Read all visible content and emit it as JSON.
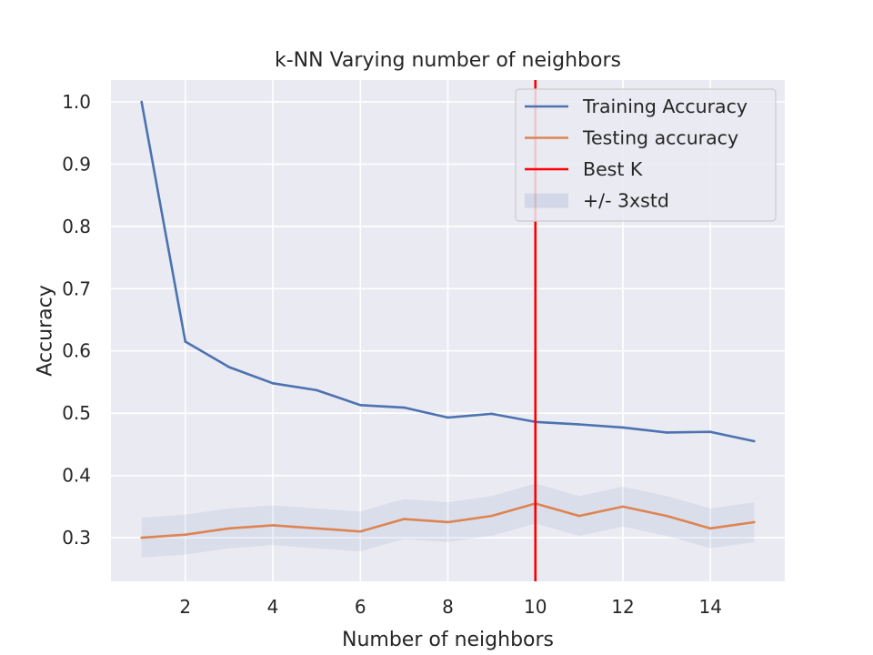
{
  "chart_data": {
    "type": "line",
    "title": "k-NN Varying number of neighbors",
    "xlabel": "Number of neighbors",
    "ylabel": "Accuracy",
    "xlim": [
      0.3,
      15.7
    ],
    "ylim": [
      0.23,
      1.035
    ],
    "xticks": [
      2,
      4,
      6,
      8,
      10,
      12,
      14
    ],
    "yticks": [
      0.3,
      0.4,
      0.5,
      0.6,
      0.7,
      0.8,
      0.9,
      1.0
    ],
    "x": [
      1,
      2,
      3,
      4,
      5,
      6,
      7,
      8,
      9,
      10,
      11,
      12,
      13,
      14,
      15
    ],
    "series": [
      {
        "name": "Training Accuracy",
        "color": "#4c72b0",
        "values": [
          1.0,
          0.615,
          0.574,
          0.548,
          0.537,
          0.513,
          0.509,
          0.493,
          0.499,
          0.486,
          0.482,
          0.477,
          0.469,
          0.47,
          0.455
        ]
      },
      {
        "name": "Testing accuracy",
        "color": "#dd8452",
        "values": [
          0.3,
          0.305,
          0.315,
          0.32,
          0.315,
          0.31,
          0.33,
          0.325,
          0.335,
          0.355,
          0.335,
          0.35,
          0.335,
          0.315,
          0.325
        ]
      }
    ],
    "band": {
      "name": "+/- 3xstd",
      "color": "#4c72b0",
      "opacity": 0.1,
      "lower": [
        0.268,
        0.273,
        0.283,
        0.288,
        0.283,
        0.278,
        0.298,
        0.293,
        0.303,
        0.323,
        0.303,
        0.318,
        0.303,
        0.283,
        0.293
      ],
      "upper": [
        0.332,
        0.337,
        0.347,
        0.352,
        0.347,
        0.342,
        0.362,
        0.357,
        0.367,
        0.387,
        0.367,
        0.382,
        0.367,
        0.347,
        0.357
      ]
    },
    "vline": {
      "name": "Best K",
      "x": 10,
      "color": "#ff0000"
    },
    "legend_position": "top-right",
    "grid": true,
    "style": "seaborn-darkgrid"
  }
}
